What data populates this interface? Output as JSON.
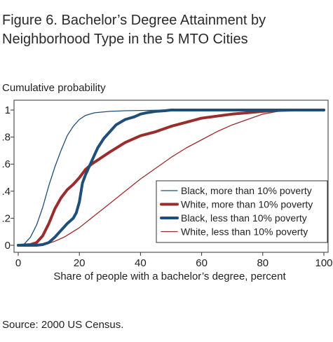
{
  "title_lines": [
    "Figure 6. Bachelor’s Degree Attainment by",
    "Neighborhood Type in the 5 MTO Cities"
  ],
  "source": "Source: 2000 US Census.",
  "chart_data": {
    "type": "line",
    "title": "Figure 6. Bachelor’s Degree Attainment by Neighborhood Type in the 5 MTO Cities",
    "ylabel": "Cumulative probability",
    "xlabel": "Share of people with a bachelor’s degree, percent",
    "xlim": [
      0,
      100
    ],
    "ylim": [
      0,
      1
    ],
    "x_ticks": [
      0,
      20,
      40,
      60,
      80,
      100
    ],
    "x_tick_labels": [
      "0",
      "20",
      "40",
      "60",
      "80",
      "100"
    ],
    "y_ticks": [
      0,
      0.2,
      0.4,
      0.6,
      0.8,
      1
    ],
    "y_tick_labels": [
      "0",
      ".2",
      ".4",
      ".6",
      ".8",
      "1"
    ],
    "grid": false,
    "legend_position": "bottom-right",
    "series": [
      {
        "name": "Black, more than 10% poverty",
        "color": "#1f4e79",
        "style": "thin",
        "x": [
          0,
          2,
          4,
          6,
          8,
          10,
          12,
          14,
          16,
          18,
          20,
          22,
          25,
          30,
          35,
          40,
          50,
          100
        ],
        "y": [
          0,
          0.01,
          0.06,
          0.15,
          0.28,
          0.44,
          0.58,
          0.7,
          0.81,
          0.88,
          0.93,
          0.96,
          0.98,
          0.99,
          0.995,
          0.997,
          1.0,
          1.0
        ]
      },
      {
        "name": "White, more than 10% poverty",
        "color": "#9b2c2c",
        "style": "thick",
        "x": [
          0,
          4,
          6,
          8,
          10,
          12,
          14,
          16,
          18,
          20,
          22,
          24,
          26,
          28,
          30,
          35,
          40,
          45,
          50,
          55,
          60,
          65,
          70,
          75,
          80,
          85,
          90,
          100
        ],
        "y": [
          0,
          0.005,
          0.02,
          0.07,
          0.16,
          0.27,
          0.35,
          0.41,
          0.45,
          0.5,
          0.56,
          0.6,
          0.63,
          0.66,
          0.69,
          0.76,
          0.81,
          0.84,
          0.88,
          0.91,
          0.94,
          0.955,
          0.97,
          0.98,
          0.99,
          0.997,
          1.0,
          1.0
        ]
      },
      {
        "name": "Black, less than 10% poverty",
        "color": "#1f4e79",
        "style": "thick",
        "x": [
          0,
          6,
          8,
          10,
          12,
          14,
          16,
          18,
          19,
          20,
          21,
          22,
          24,
          26,
          28,
          30,
          32,
          35,
          38,
          40,
          42,
          45,
          48,
          50,
          100
        ],
        "y": [
          0,
          0,
          0.005,
          0.02,
          0.06,
          0.11,
          0.16,
          0.2,
          0.24,
          0.32,
          0.46,
          0.52,
          0.62,
          0.72,
          0.79,
          0.84,
          0.89,
          0.93,
          0.95,
          0.97,
          0.98,
          0.99,
          0.995,
          1.0,
          1.0
        ]
      },
      {
        "name": "White, less than 10% poverty",
        "color": "#9b2c2c",
        "style": "thin",
        "x": [
          0,
          4,
          8,
          10,
          12,
          15,
          20,
          25,
          30,
          35,
          40,
          45,
          50,
          55,
          60,
          65,
          70,
          75,
          80,
          85,
          90,
          100
        ],
        "y": [
          0,
          0,
          0.005,
          0.015,
          0.03,
          0.06,
          0.13,
          0.22,
          0.31,
          0.4,
          0.49,
          0.57,
          0.65,
          0.72,
          0.78,
          0.84,
          0.89,
          0.93,
          0.97,
          0.99,
          1.0,
          1.0
        ]
      }
    ]
  }
}
